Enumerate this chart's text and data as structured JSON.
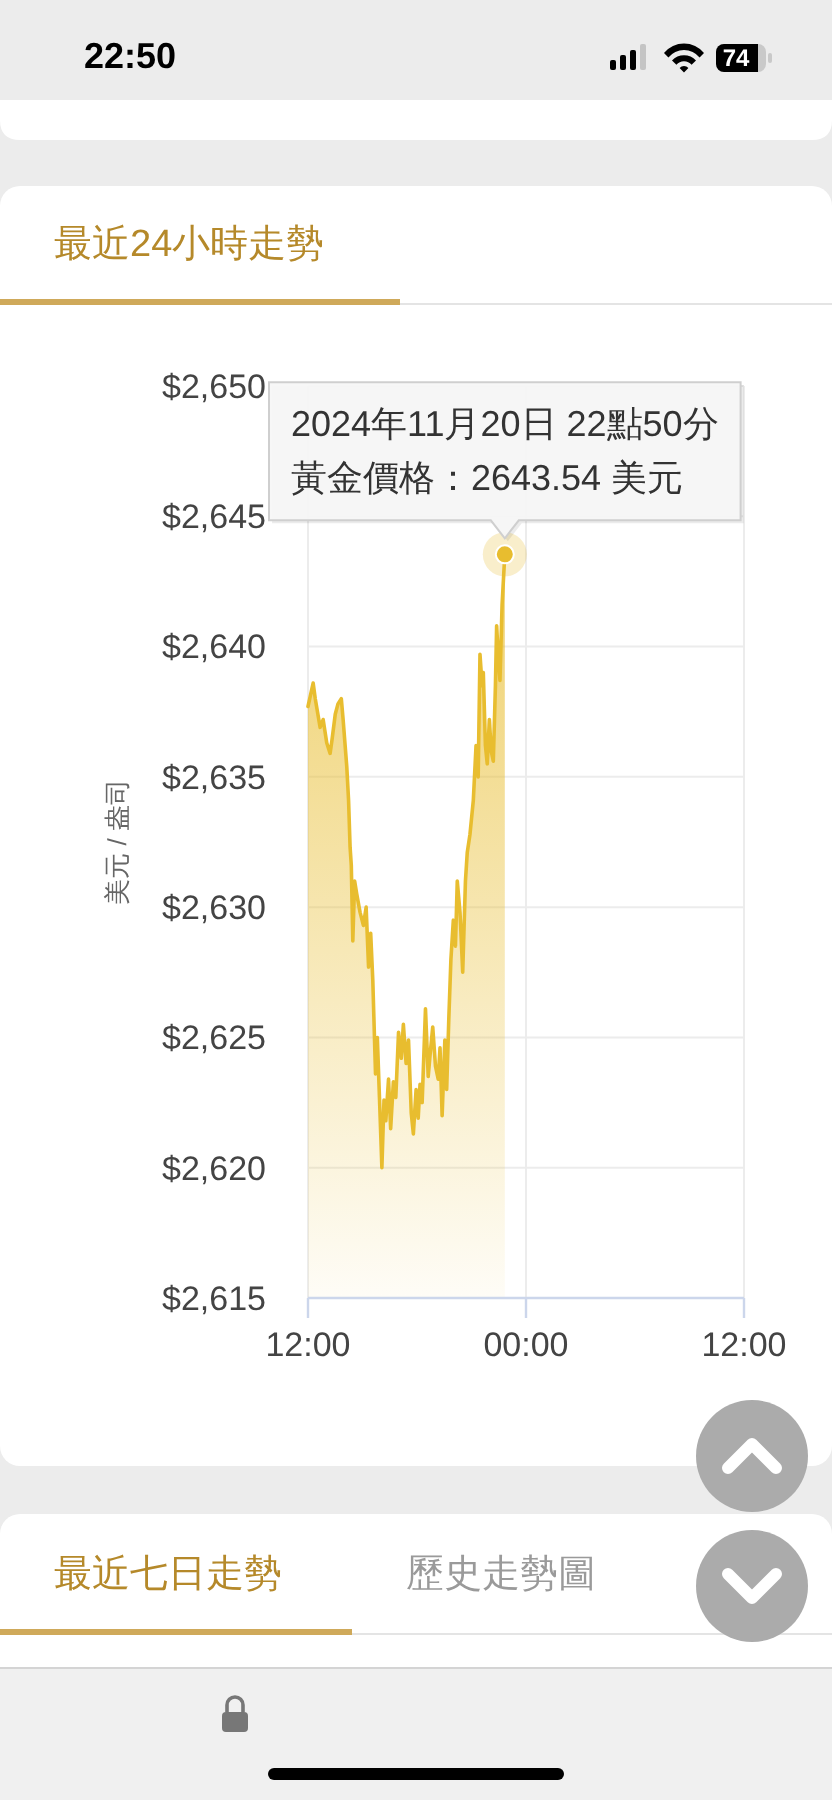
{
  "chart_data": {
    "type": "area",
    "title": "最近24小時走勢",
    "ylabel": "美元 / 盎司",
    "x": [
      "2024-11-20T12:00",
      "2024-11-20T12:17",
      "2024-11-20T12:24",
      "2024-11-20T12:40",
      "2024-11-20T12:50",
      "2024-11-20T13:02",
      "2024-11-20T13:13",
      "2024-11-20T13:19",
      "2024-11-20T13:30",
      "2024-11-20T13:39",
      "2024-11-20T13:50",
      "2024-11-20T13:56",
      "2024-11-20T14:08",
      "2024-11-20T14:14",
      "2024-11-20T14:19",
      "2024-11-20T14:23",
      "2024-11-20T14:28",
      "2024-11-20T14:34",
      "2024-11-20T14:41",
      "2024-11-20T14:52",
      "2024-11-20T15:03",
      "2024-11-20T15:12",
      "2024-11-20T15:20",
      "2024-11-20T15:27",
      "2024-11-20T15:34",
      "2024-11-20T15:43",
      "2024-11-20T15:49",
      "2024-11-20T15:56",
      "2024-11-20T16:04",
      "2024-11-20T16:11",
      "2024-11-20T16:17",
      "2024-11-20T16:26",
      "2024-11-20T16:33",
      "2024-11-20T16:42",
      "2024-11-20T16:50",
      "2024-11-20T16:59",
      "2024-11-20T17:08",
      "2024-11-20T17:15",
      "2024-11-20T17:24",
      "2024-11-20T17:32",
      "2024-11-20T17:41",
      "2024-11-20T17:48",
      "2024-11-20T17:57",
      "2024-11-20T18:04",
      "2024-11-20T18:10",
      "2024-11-20T18:17",
      "2024-11-20T18:28",
      "2024-11-20T18:37",
      "2024-11-20T18:43",
      "2024-11-20T18:52",
      "2024-11-20T19:01",
      "2024-11-20T19:10",
      "2024-11-20T19:16",
      "2024-11-20T19:23",
      "2024-11-20T19:32",
      "2024-11-20T19:38",
      "2024-11-20T19:45",
      "2024-11-20T19:52",
      "2024-11-20T20:00",
      "2024-11-20T20:07",
      "2024-11-20T20:13",
      "2024-11-20T20:22",
      "2024-11-20T20:31",
      "2024-11-20T20:40",
      "2024-11-20T20:46",
      "2024-11-20T20:55",
      "2024-11-20T21:06",
      "2024-11-20T21:15",
      "2024-11-20T21:22",
      "2024-11-20T21:28",
      "2024-11-20T21:35",
      "2024-11-20T21:39",
      "2024-11-20T21:46",
      "2024-11-20T21:52",
      "2024-11-20T21:59",
      "2024-11-20T22:05",
      "2024-11-20T22:12",
      "2024-11-20T22:19",
      "2024-11-20T22:23",
      "2024-11-20T22:29",
      "2024-11-20T22:34",
      "2024-11-20T22:41",
      "2024-11-20T22:50"
    ],
    "series": [
      {
        "color": "#e8bd2f",
        "values": [
          2637.7,
          2638.6,
          2638.0,
          2636.9,
          2637.2,
          2636.3,
          2635.9,
          2636.4,
          2637.4,
          2637.8,
          2638.0,
          2637.2,
          2635.4,
          2634.1,
          2632.3,
          2631.6,
          2628.7,
          2631.0,
          2630.5,
          2629.8,
          2629.3,
          2630.0,
          2627.7,
          2629.0,
          2627.2,
          2623.6,
          2625.0,
          2622.7,
          2620.0,
          2622.6,
          2621.8,
          2623.4,
          2621.5,
          2623.3,
          2622.7,
          2625.2,
          2624.2,
          2625.5,
          2624.0,
          2624.9,
          2622.1,
          2621.3,
          2623.0,
          2621.9,
          2623.2,
          2622.5,
          2626.1,
          2623.5,
          2624.3,
          2625.4,
          2623.9,
          2623.4,
          2624.6,
          2622.0,
          2624.9,
          2623.0,
          2625.7,
          2628.0,
          2629.5,
          2628.5,
          2631.0,
          2629.8,
          2627.5,
          2631.0,
          2632.1,
          2632.8,
          2634.1,
          2636.2,
          2635.0,
          2639.7,
          2638.5,
          2639.0,
          2636.2,
          2635.5,
          2637.2,
          2636.0,
          2635.6,
          2638.5,
          2640.8,
          2639.5,
          2638.7,
          2641.6,
          2643.54
        ]
      }
    ],
    "xlim": [
      "2024-11-20T12:00",
      "2024-11-21T12:00"
    ],
    "xticks": [
      {
        "value": "2024-11-20T12:00",
        "label": "12:00"
      },
      {
        "value": "2024-11-21T00:00",
        "label": "00:00"
      },
      {
        "value": "2024-11-21T12:00",
        "label": "12:00"
      }
    ],
    "ylim": [
      2615,
      2650
    ],
    "yticks": [
      {
        "value": 2615,
        "label": "$2,615"
      },
      {
        "value": 2620,
        "label": "$2,620"
      },
      {
        "value": 2625,
        "label": "$2,625"
      },
      {
        "value": 2630,
        "label": "$2,630"
      },
      {
        "value": 2635,
        "label": "$2,635"
      },
      {
        "value": 2640,
        "label": "$2,640"
      },
      {
        "value": 2645,
        "label": "$2,645"
      },
      {
        "value": 2650,
        "label": "$2,650"
      }
    ],
    "grid": true,
    "annotations": [
      "2024年11月20日 22點50分",
      {
        "text": "黃金價格：2643.54 美元",
        "x": "2024-11-20T22:50",
        "y": 2643.54
      },
      "22:50",
      "74",
      "最近七日走勢",
      "歷史走勢圖"
    ]
  }
}
